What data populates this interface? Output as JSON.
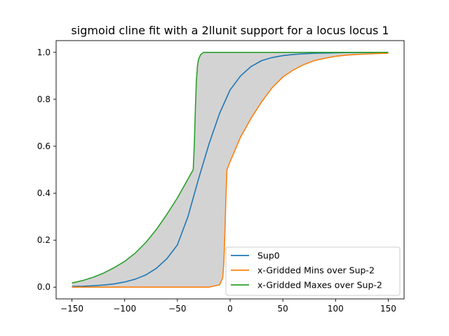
{
  "chart_data": {
    "type": "line",
    "title": "sigmoid cline fit with a 2llunit support for a locus locus 1",
    "xlabel": "",
    "ylabel": "",
    "xlim": [
      -165,
      165
    ],
    "ylim": [
      -0.05,
      1.05
    ],
    "xticks": [
      -150,
      -100,
      -50,
      0,
      50,
      100,
      150
    ],
    "xtick_labels": [
      "−150",
      "−100",
      "−50",
      "0",
      "50",
      "100",
      "150"
    ],
    "yticks": [
      0.0,
      0.2,
      0.4,
      0.6,
      0.8,
      1.0
    ],
    "ytick_labels": [
      "0.0",
      "0.2",
      "0.4",
      "0.6",
      "0.8",
      "1.0"
    ],
    "grid": false,
    "legend_position": "lower-right",
    "fill_between": {
      "lower": "x-Gridded Mins over Sup-2",
      "upper": "x-Gridded Maxes over Sup-2",
      "color": "#d3d3d3"
    },
    "series": [
      {
        "name": "Sup0",
        "color": "#1f77b4",
        "x": [
          -150,
          -140,
          -130,
          -120,
          -110,
          -100,
          -90,
          -80,
          -70,
          -60,
          -50,
          -40,
          -35,
          -30,
          -20,
          -10,
          0,
          10,
          20,
          30,
          40,
          50,
          60,
          70,
          80,
          90,
          100,
          110,
          120,
          130,
          140,
          150
        ],
        "y": [
          0.003,
          0.004,
          0.006,
          0.009,
          0.014,
          0.022,
          0.034,
          0.052,
          0.08,
          0.121,
          0.18,
          0.3,
          0.38,
          0.46,
          0.61,
          0.74,
          0.84,
          0.9,
          0.94,
          0.965,
          0.978,
          0.986,
          0.991,
          0.994,
          0.996,
          0.997,
          0.998,
          0.999,
          0.999,
          0.999,
          0.999,
          1.0
        ]
      },
      {
        "name": "x-Gridded Mins over Sup-2",
        "color": "#ff7f0e",
        "x": [
          -150,
          -100,
          -50,
          -20,
          -10,
          -7,
          -6,
          -5,
          -4,
          -3,
          0,
          10,
          20,
          30,
          40,
          50,
          60,
          70,
          80,
          90,
          100,
          110,
          120,
          130,
          140,
          150
        ],
        "y": [
          0.0,
          0.0,
          0.0,
          0.0,
          0.01,
          0.04,
          0.1,
          0.22,
          0.38,
          0.5,
          0.535,
          0.64,
          0.72,
          0.79,
          0.85,
          0.895,
          0.925,
          0.948,
          0.965,
          0.975,
          0.983,
          0.988,
          0.991,
          0.993,
          0.995,
          0.996
        ]
      },
      {
        "name": "x-Gridded Maxes over Sup-2",
        "color": "#2ca02c",
        "x": [
          -150,
          -140,
          -130,
          -120,
          -110,
          -100,
          -90,
          -80,
          -70,
          -60,
          -50,
          -40,
          -35,
          -34,
          -33,
          -32,
          -31,
          -30,
          -28,
          -26,
          -25,
          -20,
          0,
          50,
          100,
          150
        ],
        "y": [
          0.018,
          0.028,
          0.042,
          0.06,
          0.083,
          0.11,
          0.145,
          0.19,
          0.245,
          0.31,
          0.38,
          0.46,
          0.5,
          0.6,
          0.75,
          0.88,
          0.94,
          0.97,
          0.99,
          0.997,
          1.0,
          1.0,
          1.0,
          1.0,
          1.0,
          1.0
        ]
      }
    ]
  }
}
